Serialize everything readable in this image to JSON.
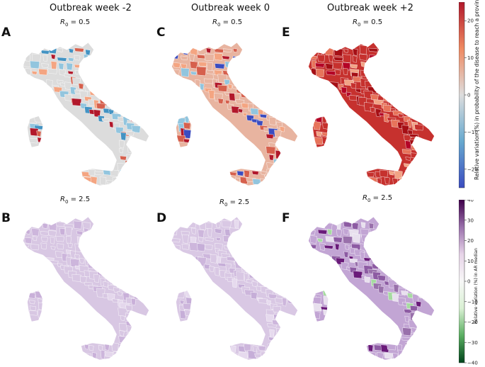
{
  "columns": [
    {
      "title": "Outbreak week -2"
    },
    {
      "title": "Outbreak week 0"
    },
    {
      "title": "Outbreak week +2"
    }
  ],
  "panels": {
    "A": {
      "letter": "A",
      "r0_text": " =  0.5"
    },
    "C": {
      "letter": "C",
      "r0_text": " = 0.5"
    },
    "E": {
      "letter": "E",
      "r0_text": " = 0.5"
    },
    "B": {
      "letter": "B",
      "r0_text": " = 2.5"
    },
    "D": {
      "letter": "D",
      "r0_text": " = 2.5"
    },
    "F": {
      "letter": "F",
      "r0_text": " = 2.5"
    }
  },
  "r0_symbol": "R",
  "r0_sub": "0",
  "colorbars": {
    "top": {
      "label": "Relative variation (%) in probability of the disease to reach a province",
      "ticks": [
        "20",
        "10",
        "0",
        "−10",
        "−20"
      ],
      "tick_values": [
        20,
        10,
        0,
        -10,
        -20
      ],
      "range": [
        -25,
        25
      ],
      "colors": [
        "#b2182b",
        "#ef8a62",
        "#dddddd",
        "#67a9cf",
        "#3b4cc0"
      ]
    },
    "bottom": {
      "label": "Relative variation (%) in AR median",
      "ticks": [
        "40",
        "30",
        "20",
        "10",
        "0",
        "−10",
        "−20",
        "−30",
        "−40"
      ],
      "tick_values": [
        40,
        30,
        20,
        10,
        0,
        -10,
        -20,
        -30,
        -40
      ],
      "range": [
        -40,
        40
      ],
      "colors": [
        "#40004b",
        "#9970ab",
        "#e7d4e8",
        "#f7f7f7",
        "#d9f0d3",
        "#5aae61",
        "#00441b"
      ]
    }
  },
  "chart_data": {
    "type": "heatmap",
    "description_free": true,
    "panels": [
      {
        "id": "A",
        "week": "Outbreak week -2",
        "r0": 0.5,
        "palette": "diverging-red-blue",
        "dominant": "mixed",
        "base_color": "#dcdcdc",
        "accents": [
          "#b2182b",
          "#f4a582",
          "#92c5de",
          "#d6604d",
          "#4393c3"
        ]
      },
      {
        "id": "C",
        "week": "Outbreak week 0",
        "r0": 0.5,
        "palette": "diverging-red-blue",
        "dominant": "mixed-positive",
        "base_color": "#e8b4a0",
        "accents": [
          "#b2182b",
          "#d6604d",
          "#3b4cc0",
          "#92c5de",
          "#f4a582"
        ]
      },
      {
        "id": "E",
        "week": "Outbreak week +2",
        "r0": 0.5,
        "palette": "diverging-red-blue",
        "dominant": "strong-positive",
        "base_color": "#c6312e",
        "accents": [
          "#b40426",
          "#e7745b",
          "#f2a385",
          "#a50f15"
        ]
      },
      {
        "id": "B",
        "week": "Outbreak week -2",
        "r0": 2.5,
        "palette": "purple-green",
        "dominant": "slight-positive",
        "base_color": "#d8c7e3",
        "accents": [
          "#cdb6dc",
          "#e4d7ec",
          "#c9b0d9"
        ]
      },
      {
        "id": "D",
        "week": "Outbreak week 0",
        "r0": 2.5,
        "palette": "purple-green",
        "dominant": "slight-positive",
        "base_color": "#d9c8e4",
        "accents": [
          "#cdb6dc",
          "#e6daee",
          "#c6aed8"
        ]
      },
      {
        "id": "F",
        "week": "Outbreak week +2",
        "r0": 2.5,
        "palette": "purple-green",
        "dominant": "positive",
        "base_color": "#c2a5d4",
        "accents": [
          "#6a1b7a",
          "#9970ab",
          "#e8e0ee",
          "#a6dba0",
          "#8d5ba3"
        ]
      }
    ]
  }
}
